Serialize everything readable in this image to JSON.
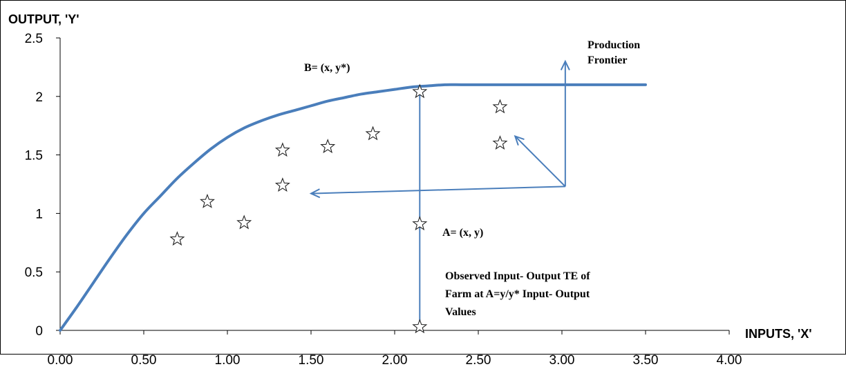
{
  "chart_data": {
    "type": "scatter",
    "title": "",
    "xlabel": "INPUTS,  'X'",
    "ylabel": "OUTPUT, 'Y'",
    "xlim": [
      0,
      4
    ],
    "ylim": [
      0,
      2.5
    ],
    "x_ticks": [
      "0.00",
      "0.50",
      "1.00",
      "1.50",
      "2.00",
      "2.50",
      "3.00",
      "3.50",
      "4.00"
    ],
    "y_ticks": [
      "0",
      "0.5",
      "1",
      "1.5",
      "2",
      "2.5"
    ],
    "series": [
      {
        "type": "line",
        "color": "#4a7ebb",
        "x": [
          0.0,
          0.1,
          0.2,
          0.3,
          0.4,
          0.5,
          0.6,
          0.7,
          0.8,
          0.9,
          1.0,
          1.1,
          1.2,
          1.3,
          1.4,
          1.5,
          1.6,
          1.7,
          1.8,
          1.9,
          2.0,
          2.1,
          2.2,
          2.3,
          2.4,
          2.5,
          2.75,
          3.0,
          3.25,
          3.5
        ],
        "y": [
          0.0,
          0.2,
          0.41,
          0.62,
          0.82,
          1.0,
          1.15,
          1.3,
          1.43,
          1.55,
          1.65,
          1.73,
          1.79,
          1.84,
          1.88,
          1.92,
          1.96,
          1.99,
          2.02,
          2.04,
          2.06,
          2.08,
          2.09,
          2.1,
          2.1,
          2.1,
          2.1,
          2.1,
          2.1,
          2.1
        ]
      },
      {
        "type": "scatter",
        "marker": "star",
        "x": [
          0.7,
          0.88,
          1.1,
          1.33,
          1.33,
          1.6,
          1.87,
          2.15,
          2.15,
          2.15,
          2.63,
          2.63
        ],
        "y": [
          0.78,
          1.1,
          0.92,
          1.54,
          1.24,
          1.57,
          1.68,
          2.04,
          0.91,
          0.03,
          1.91,
          1.6
        ]
      }
    ],
    "annotations": {
      "point_b": "B= (x, y*)",
      "frontier_line1": "Production",
      "frontier_line2": "Frontier",
      "point_a": "A= (x, y)",
      "te_line1": "Observed Input- Output TE of",
      "te_line2": "Farm at A=y/y* Input- Output",
      "te_line3": "Values"
    },
    "grid": false,
    "legend": "none"
  }
}
